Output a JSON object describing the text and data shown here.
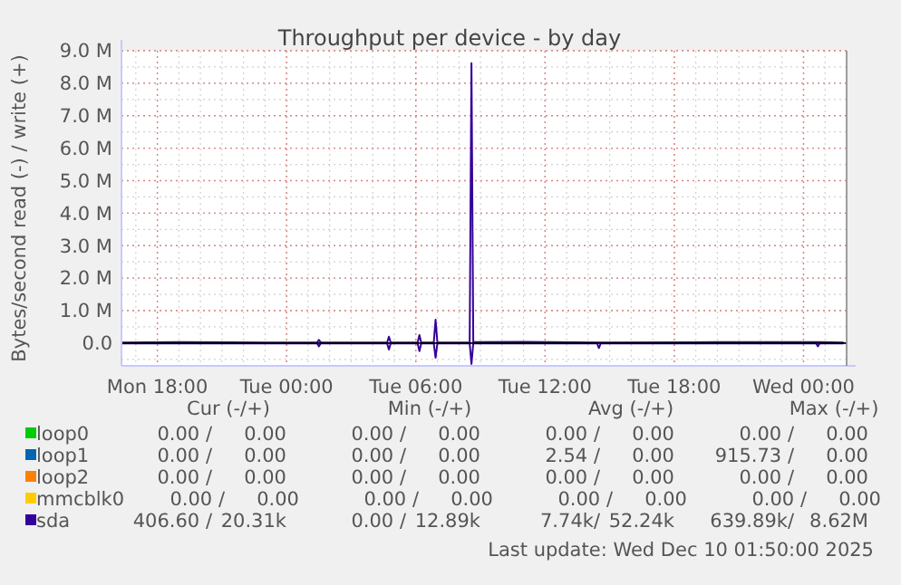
{
  "chart_data": {
    "type": "line",
    "title": "Throughput per device - by day",
    "ylabel": "Bytes/second read (-) / write (+)",
    "xlim": [
      "2025-12-08T16:20",
      "2025-12-10T02:00"
    ],
    "xticks": [
      {
        "value": "2025-12-08T18:00",
        "label": "Mon 18:00"
      },
      {
        "value": "2025-12-09T00:00",
        "label": "Tue 00:00"
      },
      {
        "value": "2025-12-09T06:00",
        "label": "Tue 06:00"
      },
      {
        "value": "2025-12-09T12:00",
        "label": "Tue 12:00"
      },
      {
        "value": "2025-12-09T18:00",
        "label": "Tue 18:00"
      },
      {
        "value": "2025-12-10T00:00",
        "label": "Wed 00:00"
      }
    ],
    "ylim": [
      -700000,
      9000000
    ],
    "yticks": [
      {
        "value": 0,
        "label": "0.0"
      },
      {
        "value": 1000000,
        "label": "1.0 M"
      },
      {
        "value": 2000000,
        "label": "2.0 M"
      },
      {
        "value": 3000000,
        "label": "3.0 M"
      },
      {
        "value": 4000000,
        "label": "4.0 M"
      },
      {
        "value": 5000000,
        "label": "5.0 M"
      },
      {
        "value": 6000000,
        "label": "6.0 M"
      },
      {
        "value": 7000000,
        "label": "7.0 M"
      },
      {
        "value": 8000000,
        "label": "8.0 M"
      },
      {
        "value": 9000000,
        "label": "9.0 M"
      }
    ],
    "grid": true,
    "legend": "bottom",
    "marker": "none",
    "line_style": "solid",
    "series": [
      {
        "name": "loop0",
        "color": "#00cc00"
      },
      {
        "name": "loop1",
        "color": "#0066b3"
      },
      {
        "name": "loop2",
        "color": "#ff8000"
      },
      {
        "name": "mmcblk0",
        "color": "#ffcc00"
      },
      {
        "name": "sda",
        "color": "#330099",
        "x": [
          "2025-12-08T16:20",
          "2025-12-08T19:00",
          "2025-12-08T23:00",
          "2025-12-09T01:25",
          "2025-12-09T01:30",
          "2025-12-09T01:35",
          "2025-12-09T04:40",
          "2025-12-09T04:45",
          "2025-12-09T04:50",
          "2025-12-09T06:05",
          "2025-12-09T06:10",
          "2025-12-09T06:15",
          "2025-12-09T06:50",
          "2025-12-09T06:55",
          "2025-12-09T07:00",
          "2025-12-09T08:30",
          "2025-12-09T08:35",
          "2025-12-09T08:40",
          "2025-12-09T11:00",
          "2025-12-09T14:30",
          "2025-12-09T20:00",
          "2025-12-10T00:40",
          "2025-12-10T01:50"
        ],
        "values": [
          20000,
          30000,
          20000,
          20000,
          100000,
          20000,
          20000,
          200000,
          20000,
          20000,
          250000,
          20000,
          20000,
          720000,
          20000,
          20000,
          8620000,
          30000,
          40000,
          20000,
          30000,
          30000,
          20000
        ]
      },
      {
        "color": "#330099",
        "x": [
          "2025-12-08T16:20",
          "2025-12-08T23:00",
          "2025-12-09T01:25",
          "2025-12-09T01:30",
          "2025-12-09T01:35",
          "2025-12-09T04:40",
          "2025-12-09T04:45",
          "2025-12-09T04:50",
          "2025-12-09T06:05",
          "2025-12-09T06:10",
          "2025-12-09T06:15",
          "2025-12-09T06:50",
          "2025-12-09T06:55",
          "2025-12-09T07:00",
          "2025-12-09T08:30",
          "2025-12-09T08:35",
          "2025-12-09T08:40",
          "2025-12-09T14:25",
          "2025-12-09T14:30",
          "2025-12-09T14:35",
          "2025-12-10T00:35",
          "2025-12-10T00:40",
          "2025-12-10T00:45",
          "2025-12-10T01:50"
        ],
        "values": [
          -10000,
          -10000,
          -10000,
          -100000,
          -10000,
          -10000,
          -200000,
          -10000,
          -10000,
          -250000,
          -10000,
          -10000,
          -450000,
          -10000,
          -10000,
          -640000,
          -10000,
          -10000,
          -150000,
          -10000,
          -10000,
          -100000,
          -10000,
          -10000
        ]
      }
    ],
    "annotations": [
      "Cur (-/+)",
      "Min (-/+)",
      "Avg (-/+)",
      "Max (-/+)",
      "0.00 /",
      "0.00",
      "0.00 /",
      "0.00",
      "0.00 /",
      "0.00",
      "0.00 /",
      "0.00",
      "0.00 /",
      "0.00",
      "0.00 /",
      "0.00",
      "2.54 /",
      "0.00",
      "915.73 /",
      "0.00",
      "0.00 /",
      "0.00",
      "0.00 /",
      "0.00",
      "0.00 /",
      "0.00",
      "0.00 /",
      "0.00",
      "0.00 /",
      "0.00",
      "0.00 /",
      "0.00",
      "0.00 /",
      "0.00",
      "0.00 /",
      "0.00",
      "406.60 /",
      "20.31k",
      "0.00 /",
      "12.89k",
      "7.74k/",
      "52.24k",
      "639.89k/",
      "8.62M",
      "Last update: Wed Dec 10 01:50:00 2025"
    ]
  }
}
